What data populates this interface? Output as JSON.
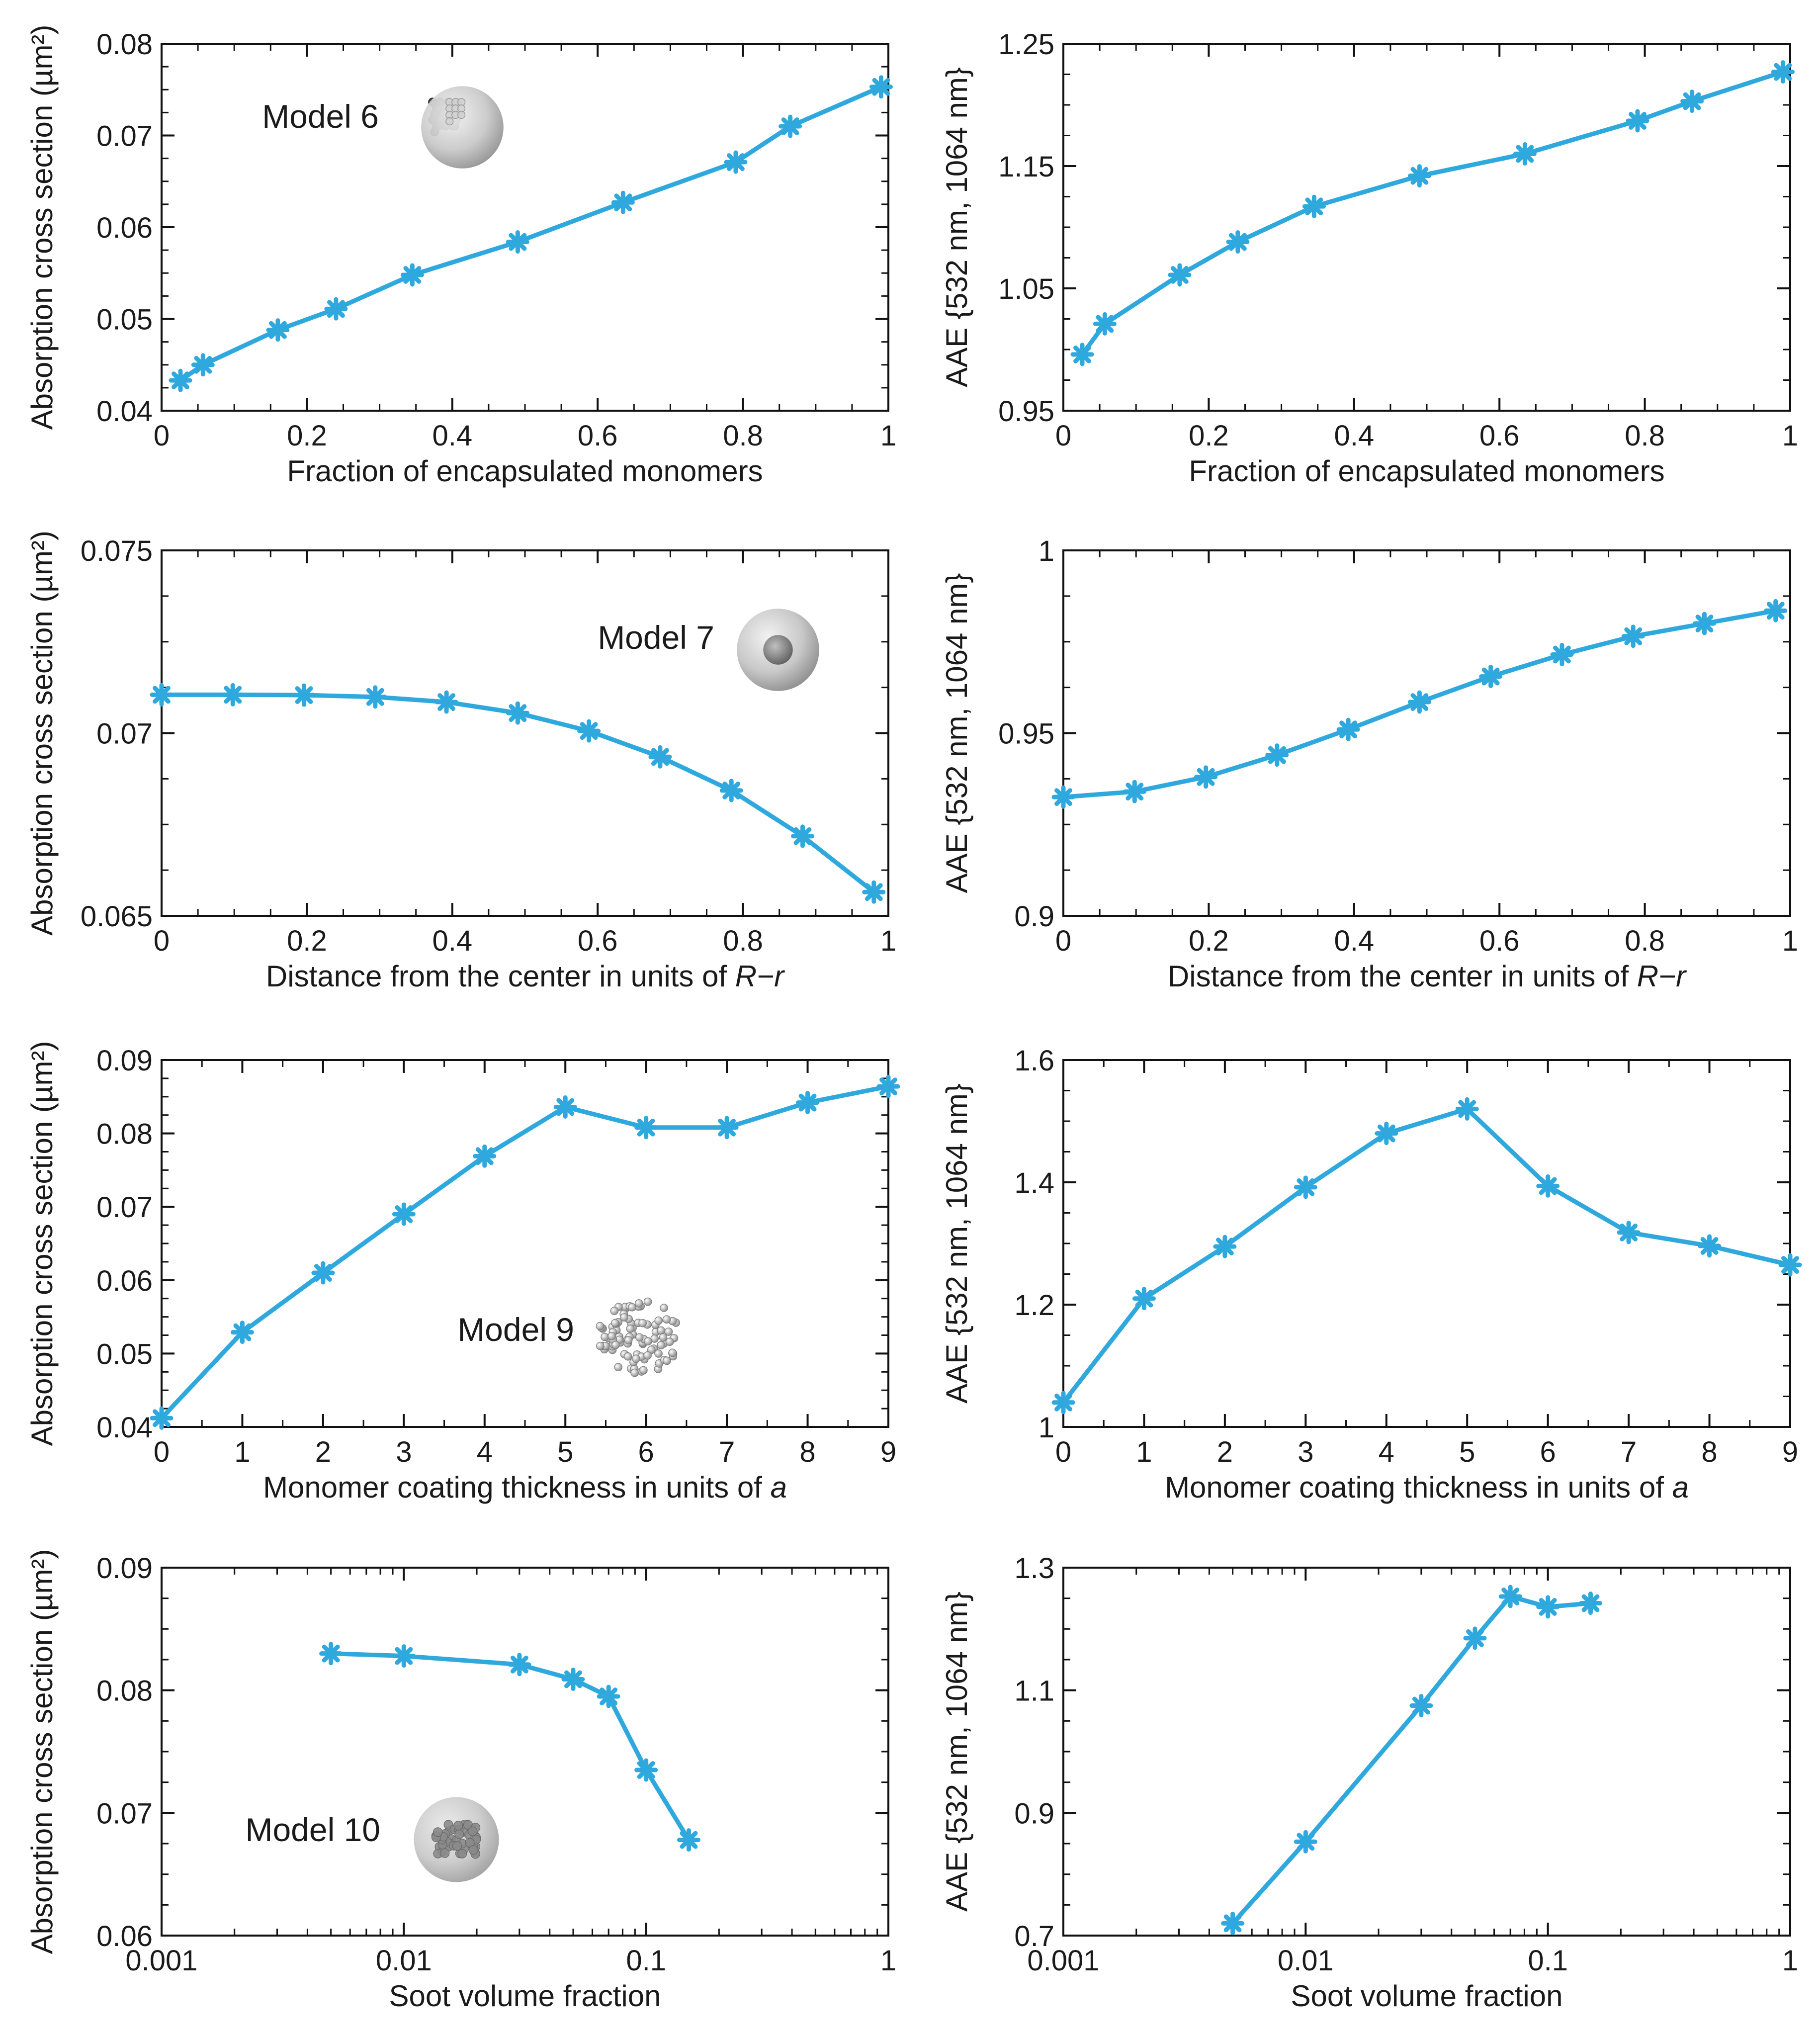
{
  "figure": {
    "panels": [
      {
        "id": "p1",
        "model_label": "Model 6",
        "model_icon": "sphere-with-edge-aggregate-icon"
      },
      {
        "id": "p2",
        "model_label": null,
        "model_icon": null
      },
      {
        "id": "p3",
        "model_label": "Model 7",
        "model_icon": "concentric-sphere-icon"
      },
      {
        "id": "p4",
        "model_label": null,
        "model_icon": null
      },
      {
        "id": "p5",
        "model_label": "Model 9",
        "model_icon": "monomer-cluster-icon"
      },
      {
        "id": "p6",
        "model_label": null,
        "model_icon": null
      },
      {
        "id": "p7",
        "model_label": "Model 10",
        "model_icon": "sphere-with-inner-aggregate-icon"
      },
      {
        "id": "p8",
        "model_label": null,
        "model_icon": null
      }
    ]
  },
  "chart_data": [
    {
      "type": "line",
      "title": "",
      "xlabel": "Fraction of encapsulated monomers",
      "ylabel": "Absorption cross section (µm²)",
      "xscale": "linear",
      "xlim": [
        0,
        1
      ],
      "ylim": [
        0.04,
        0.08
      ],
      "xticks": [
        0,
        0.2,
        0.4,
        0.6,
        0.8,
        1
      ],
      "xticklabels": [
        "0",
        "0.2",
        "0.4",
        "0.6",
        "0.8",
        "1"
      ],
      "yticks": [
        0.04,
        0.05,
        0.06,
        0.07,
        0.08
      ],
      "yticklabels": [
        "0.04",
        "0.05",
        "0.06",
        "0.07",
        "0.08"
      ],
      "xminor_step": 0.05,
      "yminor_step": 0.0025,
      "color": "#2fa9dd",
      "annotation": "Model 6",
      "series": [
        {
          "name": "Model 6",
          "x": [
            0.026,
            0.057,
            0.16,
            0.24,
            0.345,
            0.49,
            0.635,
            0.79,
            0.865,
            0.99
          ],
          "y": [
            0.0433,
            0.045,
            0.0488,
            0.0511,
            0.0548,
            0.0584,
            0.0627,
            0.0671,
            0.071,
            0.0753
          ]
        }
      ]
    },
    {
      "type": "line",
      "title": "",
      "xlabel": "Fraction of encapsulated monomers",
      "ylabel": "AAE {532 nm, 1064 nm}",
      "xscale": "linear",
      "xlim": [
        0,
        1
      ],
      "ylim": [
        0.95,
        1.25
      ],
      "xticks": [
        0,
        0.2,
        0.4,
        0.6,
        0.8,
        1
      ],
      "xticklabels": [
        "0",
        "0.2",
        "0.4",
        "0.6",
        "0.8",
        "1"
      ],
      "yticks": [
        0.95,
        1.05,
        1.15,
        1.25
      ],
      "yticklabels": [
        "0.95",
        "1.05",
        "1.15",
        "1.25"
      ],
      "xminor_step": 0.05,
      "yminor_step": 0.025,
      "color": "#2fa9dd",
      "annotation": "",
      "series": [
        {
          "name": "Model 6",
          "x": [
            0.026,
            0.057,
            0.16,
            0.24,
            0.345,
            0.49,
            0.635,
            0.79,
            0.865,
            0.99
          ],
          "y": [
            0.996,
            1.021,
            1.061,
            1.088,
            1.117,
            1.142,
            1.16,
            1.187,
            1.203,
            1.227
          ]
        }
      ]
    },
    {
      "type": "line",
      "title": "",
      "xlabel": "Distance from the center in units of R−r",
      "xlabel_plain": "Distance from the center in units of ",
      "xlabel_italic": "R−r",
      "ylabel": "Absorption cross section (µm²)",
      "xscale": "linear",
      "xlim": [
        0,
        1
      ],
      "ylim": [
        0.065,
        0.075
      ],
      "xticks": [
        0,
        0.2,
        0.4,
        0.6,
        0.8,
        1
      ],
      "xticklabels": [
        "0",
        "0.2",
        "0.4",
        "0.6",
        "0.8",
        "1"
      ],
      "yticks": [
        0.065,
        0.07,
        0.075
      ],
      "yticklabels": [
        "0.065",
        "0.07",
        "0.075"
      ],
      "xminor_step": 0.05,
      "yminor_step": 0.00125,
      "color": "#2fa9dd",
      "annotation": "Model 7",
      "series": [
        {
          "name": "Model 7",
          "x": [
            0,
            0.098,
            0.196,
            0.294,
            0.392,
            0.49,
            0.588,
            0.686,
            0.784,
            0.882,
            0.98
          ],
          "y": [
            0.07105,
            0.07105,
            0.07104,
            0.07099,
            0.07085,
            0.07055,
            0.07006,
            0.06935,
            0.06843,
            0.06718,
            0.06565
          ]
        }
      ]
    },
    {
      "type": "line",
      "title": "",
      "xlabel": "Distance from the center in units of R−r",
      "xlabel_plain": "Distance from the center in units of ",
      "xlabel_italic": "R−r",
      "ylabel": "AAE {532 nm, 1064 nm}",
      "xscale": "linear",
      "xlim": [
        0,
        1
      ],
      "ylim": [
        0.9,
        1.0
      ],
      "xticks": [
        0,
        0.2,
        0.4,
        0.6,
        0.8,
        1
      ],
      "xticklabels": [
        "0",
        "0.2",
        "0.4",
        "0.6",
        "0.8",
        "1"
      ],
      "yticks": [
        0.9,
        0.95,
        1.0
      ],
      "yticklabels": [
        "0.9",
        "0.95",
        "1"
      ],
      "xminor_step": 0.05,
      "yminor_step": 0.0125,
      "color": "#2fa9dd",
      "annotation": "",
      "series": [
        {
          "name": "Model 7",
          "x": [
            0,
            0.098,
            0.196,
            0.294,
            0.392,
            0.49,
            0.588,
            0.686,
            0.784,
            0.882,
            0.98
          ],
          "y": [
            0.9325,
            0.934,
            0.938,
            0.944,
            0.951,
            0.9585,
            0.9655,
            0.9715,
            0.9765,
            0.98,
            0.9835
          ]
        }
      ]
    },
    {
      "type": "line",
      "title": "",
      "xlabel": "Monomer coating thickness in units of a",
      "xlabel_plain": "Monomer coating thickness in units of ",
      "xlabel_italic": "a",
      "ylabel": "Absorption cross section (µm²)",
      "xscale": "linear",
      "xlim": [
        0,
        9
      ],
      "ylim": [
        0.04,
        0.09
      ],
      "xticks": [
        0,
        1,
        2,
        3,
        4,
        5,
        6,
        7,
        8,
        9
      ],
      "xticklabels": [
        "0",
        "1",
        "2",
        "3",
        "4",
        "5",
        "6",
        "7",
        "8",
        "9"
      ],
      "yticks": [
        0.04,
        0.05,
        0.06,
        0.07,
        0.08,
        0.09
      ],
      "yticklabels": [
        "0.04",
        "0.05",
        "0.06",
        "0.07",
        "0.08",
        "0.09"
      ],
      "xminor_step": 0.5,
      "yminor_step": 0.0025,
      "color": "#2fa9dd",
      "annotation": "Model 9",
      "series": [
        {
          "name": "Model 9",
          "x": [
            0,
            1,
            2,
            3,
            4,
            5,
            6,
            7,
            8,
            9
          ],
          "y": [
            0.0412,
            0.0529,
            0.061,
            0.069,
            0.0769,
            0.0836,
            0.0808,
            0.0808,
            0.0842,
            0.0864
          ]
        }
      ]
    },
    {
      "type": "line",
      "title": "",
      "xlabel": "Monomer coating thickness in units of a",
      "xlabel_plain": "Monomer coating thickness in units of ",
      "xlabel_italic": "a",
      "ylabel": "AAE {532 nm, 1064 nm}",
      "xscale": "linear",
      "xlim": [
        0,
        9
      ],
      "ylim": [
        1.0,
        1.6
      ],
      "xticks": [
        0,
        1,
        2,
        3,
        4,
        5,
        6,
        7,
        8,
        9
      ],
      "xticklabels": [
        "0",
        "1",
        "2",
        "3",
        "4",
        "5",
        "6",
        "7",
        "8",
        "9"
      ],
      "yticks": [
        1.0,
        1.2,
        1.4,
        1.6
      ],
      "yticklabels": [
        "1",
        "1.2",
        "1.4",
        "1.6"
      ],
      "xminor_step": 0.5,
      "yminor_step": 0.05,
      "color": "#2fa9dd",
      "annotation": "",
      "series": [
        {
          "name": "Model 9",
          "x": [
            0,
            1,
            2,
            3,
            4,
            5,
            6,
            7,
            8,
            9
          ],
          "y": [
            1.04,
            1.21,
            1.295,
            1.392,
            1.48,
            1.52,
            1.394,
            1.318,
            1.296,
            1.265
          ]
        }
      ]
    },
    {
      "type": "line",
      "title": "",
      "xlabel": "Soot volume fraction",
      "ylabel": "Absorption cross section (µm²)",
      "xscale": "log",
      "xlim": [
        0.001,
        1
      ],
      "ylim": [
        0.06,
        0.09
      ],
      "xticks": [
        0.001,
        0.01,
        0.1,
        1
      ],
      "xticklabels": [
        "0.001",
        "0.01",
        "0.1",
        "1"
      ],
      "yticks": [
        0.06,
        0.07,
        0.08,
        0.09
      ],
      "yticklabels": [
        "0.06",
        "0.07",
        "0.08",
        "0.09"
      ],
      "yminor_step": 0.0025,
      "color": "#2fa9dd",
      "annotation": "Model 10",
      "series": [
        {
          "name": "Model 10",
          "x": [
            0.005,
            0.01,
            0.03,
            0.05,
            0.07,
            0.1,
            0.15
          ],
          "y": [
            0.083,
            0.0828,
            0.0821,
            0.0809,
            0.0795,
            0.0735,
            0.0678
          ]
        }
      ]
    },
    {
      "type": "line",
      "title": "",
      "xlabel": "Soot volume fraction",
      "ylabel": "AAE {532 nm, 1064 nm}",
      "xscale": "log",
      "xlim": [
        0.001,
        1
      ],
      "ylim": [
        0.7,
        1.3
      ],
      "xticks": [
        0.001,
        0.01,
        0.1,
        1
      ],
      "xticklabels": [
        "0.001",
        "0.01",
        "0.1",
        "1"
      ],
      "yticks": [
        0.7,
        0.9,
        1.1,
        1.3
      ],
      "yticklabels": [
        "0.7",
        "0.9",
        "1.1",
        "1.3"
      ],
      "yminor_step": 0.05,
      "color": "#2fa9dd",
      "annotation": "",
      "series": [
        {
          "name": "Model 10",
          "x": [
            0.005,
            0.01,
            0.03,
            0.05,
            0.07,
            0.1,
            0.15
          ],
          "y": [
            0.72,
            0.853,
            1.075,
            1.185,
            1.253,
            1.236,
            1.242
          ]
        }
      ]
    }
  ]
}
